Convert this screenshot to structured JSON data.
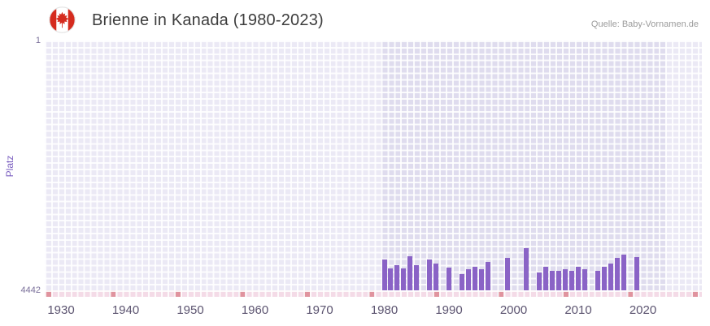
{
  "header": {
    "title": "Brienne in Kanada (1980-2023)",
    "source": "Quelle: Baby-Vornamen.de"
  },
  "axes": {
    "y_label": "Platz",
    "y_tick_top": "1",
    "y_tick_bottom": "4442",
    "x_ticks": [
      "1930",
      "1940",
      "1950",
      "1960",
      "1970",
      "1980",
      "1990",
      "2000",
      "2010",
      "2020"
    ]
  },
  "colors": {
    "bar": "#8a63c6",
    "plot_background": "#ebe9f5",
    "highlight_band": "#dfdcee",
    "grid_line": "#ffffff",
    "strip_cell": "#f4dbe7",
    "strip_cell_accent": "#e0939e",
    "flag_red": "#d52b1e",
    "y_axis_text": "#7b5fc0",
    "y_tick_text": "#7a6f9a",
    "x_tick_text": "#5c5470",
    "title_text": "#3d3d3d",
    "source_text": "#9b9b9b"
  },
  "chart_data": {
    "type": "bar",
    "title": "Brienne in Kanada (1980-2023)",
    "xlabel": "",
    "ylabel": "Platz",
    "y_axis_inverted": true,
    "ylim": [
      1,
      4442
    ],
    "x_axis_years_visible": [
      1928,
      2028
    ],
    "highlight_band_years": [
      1979.5,
      2023.5
    ],
    "grid": true,
    "legend": false,
    "years": [
      1980,
      1981,
      1982,
      1983,
      1984,
      1985,
      1986,
      1987,
      1988,
      1989,
      1990,
      1991,
      1992,
      1993,
      1994,
      1995,
      1996,
      1997,
      1998,
      1999,
      2000,
      2001,
      2002,
      2003,
      2004,
      2005,
      2006,
      2007,
      2008,
      2009,
      2010,
      2011,
      2012,
      2013,
      2014,
      2015,
      2016,
      2017,
      2018,
      2019,
      2020,
      2021,
      2022,
      2023
    ],
    "ranks": [
      3900,
      4050,
      3990,
      4050,
      3830,
      4000,
      null,
      3900,
      3970,
      null,
      4040,
      null,
      4150,
      4060,
      4030,
      4060,
      3940,
      null,
      null,
      3860,
      null,
      null,
      3690,
      null,
      4130,
      4030,
      4090,
      4090,
      4060,
      4090,
      4030,
      4060,
      null,
      4090,
      4030,
      3970,
      3860,
      3800,
      null,
      3850,
      null,
      null,
      null,
      null
    ]
  }
}
